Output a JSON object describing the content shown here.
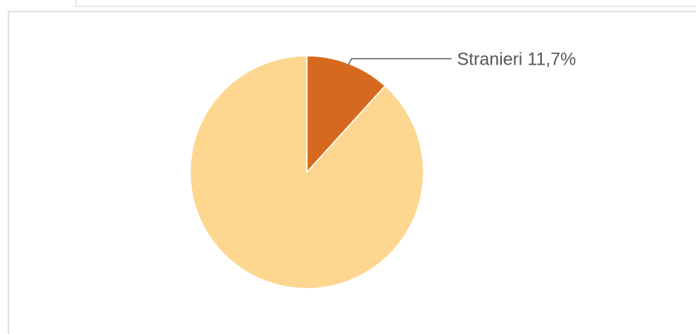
{
  "chart_data": {
    "type": "pie",
    "categories": [
      "Stranieri",
      null
    ],
    "values": [
      11.7,
      88.3
    ],
    "value_labels": [
      "11,7%",
      null
    ],
    "colors": [
      "#d4691f",
      "#fdd68f"
    ]
  }
}
